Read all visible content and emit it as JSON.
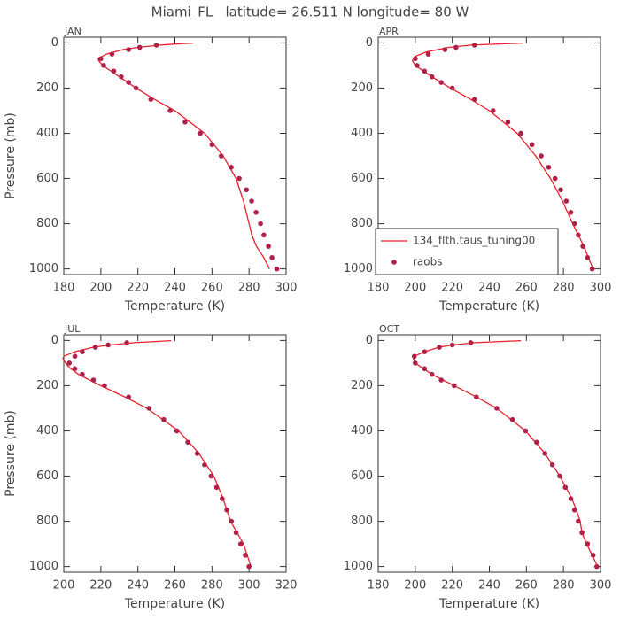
{
  "title": "Miami_FL   latitude= 26.511 N longitude= 80 W",
  "chart_data": [
    {
      "type": "line",
      "title": "JAN",
      "xlabel": "Temperature (K)",
      "ylabel": "Pressure (mb)",
      "xlim": [
        180,
        300
      ],
      "xticks": [
        180,
        200,
        220,
        240,
        260,
        280,
        300
      ],
      "ylim": [
        1025,
        -25
      ],
      "yticks": [
        0,
        200,
        400,
        600,
        800,
        1000
      ],
      "series": [
        {
          "type": "line",
          "color": "#e8202a",
          "x": [
            291,
            288,
            284,
            281.5,
            280,
            278.5,
            277,
            273,
            266,
            256,
            240,
            229,
            219,
            210,
            201,
            199,
            198.5,
            203,
            212,
            220,
            232,
            240,
            250
          ],
          "y": [
            1000,
            950,
            900,
            850,
            800,
            750,
            700,
            600,
            500,
            400,
            300,
            250,
            200,
            150,
            100,
            80,
            70,
            50,
            30,
            20,
            10,
            5,
            1
          ]
        },
        {
          "type": "scatter",
          "color": "#b0204a",
          "x": [
            295,
            292.4,
            290.5,
            288,
            286.2,
            283.8,
            281.4,
            278.6,
            274.7,
            270.4,
            265,
            260,
            253.7,
            245.5,
            237.4,
            227,
            219,
            215,
            211,
            207,
            201.5,
            200,
            206,
            215,
            221,
            230
          ],
          "y": [
            1000,
            950,
            900,
            850,
            800,
            750,
            700,
            650,
            600,
            550,
            500,
            450,
            400,
            350,
            300,
            250,
            200,
            175,
            150,
            125,
            100,
            70,
            50,
            30,
            20,
            10
          ]
        }
      ]
    },
    {
      "type": "line",
      "title": "APR",
      "xlabel": "Temperature (K)",
      "xlim": [
        180,
        300
      ],
      "xticks": [
        180,
        200,
        220,
        240,
        260,
        280,
        300
      ],
      "ylim": [
        1025,
        -25
      ],
      "yticks": [
        0,
        200,
        400,
        600,
        800,
        1000
      ],
      "legend": "lower left",
      "series": [
        {
          "type": "line",
          "name": "134_flth.taus_tuning00",
          "color": "#e8202a",
          "x": [
            296,
            291,
            285,
            279.5,
            273,
            265,
            255,
            240,
            230,
            219,
            209,
            200,
            198.5,
            200,
            206,
            218,
            230,
            258
          ],
          "y": [
            1000,
            900,
            800,
            700,
            600,
            500,
            400,
            300,
            250,
            200,
            150,
            100,
            80,
            60,
            40,
            20,
            10,
            1
          ]
        },
        {
          "type": "scatter",
          "name": "raobs",
          "color": "#b0204a",
          "x": [
            295.5,
            293,
            290.5,
            288,
            286,
            284,
            281.5,
            278.5,
            275.5,
            272,
            268,
            263,
            257,
            250,
            242,
            232,
            220,
            214,
            209,
            205,
            201,
            200,
            207,
            216,
            222,
            232
          ],
          "y": [
            1000,
            950,
            900,
            850,
            800,
            750,
            700,
            650,
            600,
            550,
            500,
            450,
            400,
            350,
            300,
            250,
            200,
            175,
            150,
            125,
            100,
            70,
            50,
            30,
            20,
            10
          ]
        }
      ]
    },
    {
      "type": "line",
      "title": "JUL",
      "xlabel": "Temperature (K)",
      "ylabel": "Pressure (mb)",
      "xlim": [
        200,
        320
      ],
      "xticks": [
        200,
        220,
        240,
        260,
        280,
        300,
        320
      ],
      "ylim": [
        1025,
        -25
      ],
      "yticks": [
        0,
        200,
        400,
        600,
        800,
        1000
      ],
      "series": [
        {
          "type": "line",
          "color": "#e8202a",
          "x": [
            301,
            297,
            290,
            286,
            281,
            273,
            262,
            245,
            233,
            220,
            208,
            203,
            201,
            199.5,
            200,
            206,
            216,
            225,
            238,
            258
          ],
          "y": [
            1000,
            900,
            800,
            700,
            600,
            500,
            400,
            300,
            250,
            200,
            150,
            120,
            100,
            80,
            70,
            50,
            30,
            20,
            10,
            1
          ]
        },
        {
          "type": "scatter",
          "color": "#b0204a",
          "x": [
            300,
            298,
            295.5,
            293,
            290.5,
            288,
            285.5,
            282.5,
            279.5,
            276,
            272,
            267,
            261,
            254,
            246,
            235,
            222,
            216,
            210,
            206,
            203,
            206,
            210,
            217,
            224,
            234
          ],
          "y": [
            1000,
            950,
            900,
            850,
            800,
            750,
            700,
            650,
            600,
            550,
            500,
            450,
            400,
            350,
            300,
            250,
            200,
            175,
            150,
            125,
            100,
            70,
            50,
            30,
            20,
            10
          ]
        }
      ]
    },
    {
      "type": "line",
      "title": "OCT",
      "xlabel": "Temperature (K)",
      "xlim": [
        180,
        300
      ],
      "xticks": [
        180,
        200,
        220,
        240,
        260,
        280,
        300
      ],
      "ylim": [
        1025,
        -25
      ],
      "yticks": [
        0,
        200,
        400,
        600,
        800,
        1000
      ],
      "series": [
        {
          "type": "line",
          "color": "#e8202a",
          "x": [
            298.5,
            295.5,
            292.5,
            290,
            289,
            287,
            284.5,
            278,
            270,
            259.5,
            244,
            233,
            221,
            209,
            200,
            199,
            199.5,
            205,
            213,
            220,
            232,
            257
          ],
          "y": [
            1000,
            950,
            900,
            850,
            800,
            750,
            700,
            600,
            500,
            400,
            300,
            250,
            200,
            150,
            100,
            80,
            70,
            50,
            30,
            20,
            10,
            1
          ]
        },
        {
          "type": "scatter",
          "color": "#b0204a",
          "x": [
            298,
            296,
            293,
            290,
            288,
            286,
            284,
            281,
            278,
            274,
            270,
            265.5,
            259.5,
            252.5,
            244,
            233,
            221,
            214,
            209,
            205,
            200,
            199.5,
            205,
            213,
            220,
            230
          ],
          "y": [
            1000,
            950,
            900,
            850,
            800,
            750,
            700,
            650,
            600,
            550,
            500,
            450,
            400,
            350,
            300,
            250,
            200,
            175,
            150,
            125,
            100,
            70,
            50,
            30,
            20,
            10
          ]
        }
      ]
    }
  ]
}
